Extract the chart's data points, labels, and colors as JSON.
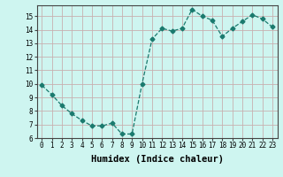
{
  "x": [
    0,
    1,
    2,
    3,
    4,
    5,
    6,
    7,
    8,
    9,
    10,
    11,
    12,
    13,
    14,
    15,
    16,
    17,
    18,
    19,
    20,
    21,
    22,
    23
  ],
  "y": [
    9.9,
    9.2,
    8.4,
    7.8,
    7.3,
    6.9,
    6.9,
    7.1,
    6.3,
    6.3,
    10.0,
    13.3,
    14.1,
    13.9,
    14.1,
    15.5,
    15.0,
    14.7,
    13.5,
    14.1,
    14.6,
    15.1,
    14.8,
    14.2
  ],
  "line_color": "#1a7a6e",
  "marker": "D",
  "markersize": 2.5,
  "bg_color": "#cef5f0",
  "grid_color": "#c8b0b0",
  "xlabel": "Humidex (Indice chaleur)",
  "ylim": [
    6,
    15.8
  ],
  "xlim": [
    -0.5,
    23.5
  ],
  "yticks": [
    6,
    7,
    8,
    9,
    10,
    11,
    12,
    13,
    14,
    15
  ],
  "xticks": [
    0,
    1,
    2,
    3,
    4,
    5,
    6,
    7,
    8,
    9,
    10,
    11,
    12,
    13,
    14,
    15,
    16,
    17,
    18,
    19,
    20,
    21,
    22,
    23
  ],
  "tick_fontsize": 5.5,
  "xlabel_fontsize": 7.5
}
